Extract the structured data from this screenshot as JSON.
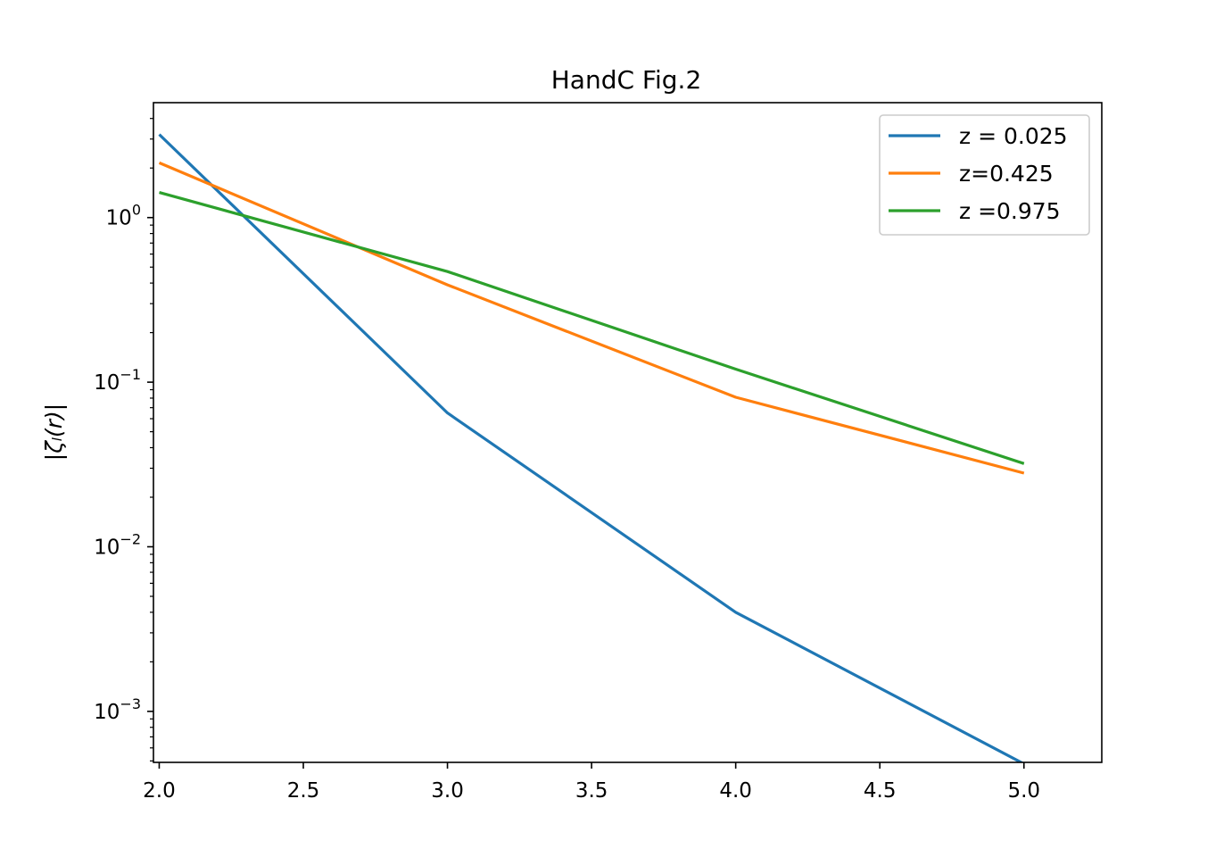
{
  "chart_data": {
    "type": "line",
    "title": "HandC Fig.2",
    "xlabel": "",
    "ylabel": "|ζₗ(r)|",
    "xlim": [
      1.98,
      5.27
    ],
    "ylim": [
      0.00049,
      4.99
    ],
    "yscale": "log",
    "x_ticks": [
      "2.0",
      "2.5",
      "3.0",
      "3.5",
      "4.0",
      "4.5",
      "5.0"
    ],
    "y_ticks": [
      {
        "base": "10",
        "exp": "0"
      },
      {
        "base": "10",
        "exp": "−1"
      },
      {
        "base": "10",
        "exp": "−2"
      },
      {
        "base": "10",
        "exp": "−3"
      }
    ],
    "grid": false,
    "legend_position": "top-right",
    "series": [
      {
        "name": "z = 0.025",
        "color": "#1f77b4",
        "x": [
          2,
          3,
          4,
          5
        ],
        "y": [
          3.2,
          0.065,
          0.004,
          0.00048
        ]
      },
      {
        "name": "z=0.425",
        "color": "#ff7f0e",
        "x": [
          2,
          3,
          4,
          5
        ],
        "y": [
          2.15,
          0.39,
          0.081,
          0.028
        ]
      },
      {
        "name": "z =0.975",
        "color": "#2ca02c",
        "x": [
          2,
          3,
          4,
          5
        ],
        "y": [
          1.42,
          0.47,
          0.12,
          0.032
        ]
      }
    ]
  }
}
